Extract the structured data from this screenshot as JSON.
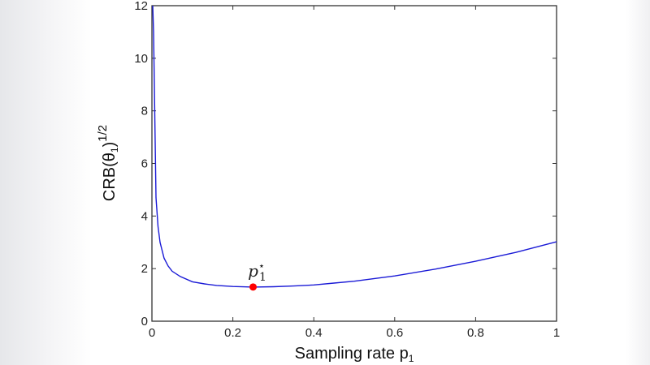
{
  "chart_data": {
    "type": "line",
    "xlabel": "Sampling rate p",
    "xlabel_sub": "1",
    "ylabel": "CRB(θ",
    "ylabel_sub": "1",
    "ylabel_tail": ")",
    "ylabel_sup": "1/2",
    "xlim": [
      0,
      1
    ],
    "ylim": [
      0,
      12
    ],
    "xticks": [
      "0",
      "0.2",
      "0.4",
      "0.6",
      "0.8",
      "1"
    ],
    "yticks": [
      "0",
      "2",
      "4",
      "6",
      "8",
      "10",
      "12"
    ],
    "grid": false,
    "series_color": "#1a1ad6",
    "marker_color": "#ff0000",
    "x": [
      0.002,
      0.004,
      0.006,
      0.008,
      0.01,
      0.015,
      0.02,
      0.03,
      0.04,
      0.05,
      0.07,
      0.1,
      0.13,
      0.16,
      0.2,
      0.25,
      0.3,
      0.35,
      0.4,
      0.45,
      0.5,
      0.6,
      0.7,
      0.8,
      0.9,
      1.0
    ],
    "y": [
      12,
      11,
      8.9,
      6.8,
      4.7,
      3.6,
      3.0,
      2.4,
      2.1,
      1.9,
      1.7,
      1.5,
      1.42,
      1.36,
      1.32,
      1.3,
      1.31,
      1.34,
      1.38,
      1.45,
      1.52,
      1.72,
      1.98,
      2.28,
      2.62,
      3.02
    ],
    "marker": {
      "x": 0.25,
      "y": 1.3,
      "label": "p",
      "label_sub": "1",
      "label_sup": "⋆"
    }
  }
}
